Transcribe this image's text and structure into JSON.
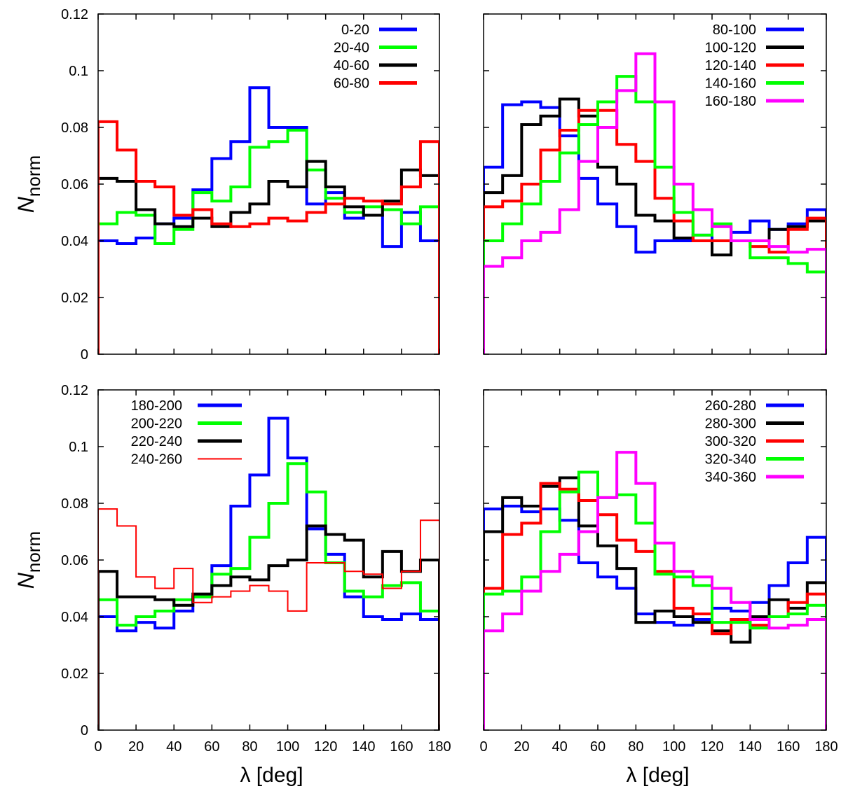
{
  "chart_data": [
    {
      "type": "line",
      "style": "step",
      "title": "",
      "xlabel": "",
      "ylabel": "N_norm",
      "ylabel_main": "N",
      "ylabel_sub": "norm",
      "xlim": [
        0,
        180
      ],
      "ylim": [
        0,
        0.12
      ],
      "xticks": [
        "0",
        "20",
        "40",
        "60",
        "80",
        "100",
        "120",
        "140",
        "160",
        "180"
      ],
      "yticks": [
        "0",
        "0.02",
        "0.04",
        "0.06",
        "0.08",
        "0.1",
        "0.12"
      ],
      "show_x_tick_labels": false,
      "show_y_tick_labels": true,
      "legend_position": "top-right",
      "series": [
        {
          "name": "0-20",
          "color": "#0000ff",
          "weight": "thick",
          "values": [
            0.04,
            0.039,
            0.041,
            0.046,
            0.048,
            0.058,
            0.069,
            0.075,
            0.094,
            0.08,
            0.08,
            0.053,
            0.057,
            0.048,
            0.049,
            0.038,
            0.05,
            0.04
          ]
        },
        {
          "name": "20-40",
          "color": "#00ff00",
          "weight": "thick",
          "values": [
            0.046,
            0.05,
            0.049,
            0.039,
            0.044,
            0.057,
            0.054,
            0.059,
            0.073,
            0.075,
            0.079,
            0.065,
            0.055,
            0.05,
            0.052,
            0.051,
            0.046,
            0.052
          ]
        },
        {
          "name": "40-60",
          "color": "#000000",
          "weight": "thick",
          "values": [
            0.062,
            0.061,
            0.051,
            0.046,
            0.045,
            0.048,
            0.045,
            0.05,
            0.053,
            0.061,
            0.059,
            0.068,
            0.059,
            0.052,
            0.049,
            0.054,
            0.065,
            0.063
          ]
        },
        {
          "name": "60-80",
          "color": "#ff0000",
          "weight": "thick",
          "values": [
            0.082,
            0.072,
            0.061,
            0.059,
            0.049,
            0.051,
            0.046,
            0.045,
            0.046,
            0.048,
            0.047,
            0.05,
            0.053,
            0.055,
            0.054,
            0.053,
            0.059,
            0.075
          ]
        }
      ]
    },
    {
      "type": "line",
      "style": "step",
      "title": "",
      "xlabel": "",
      "ylabel": "",
      "xlim": [
        0,
        180
      ],
      "ylim": [
        0,
        0.12
      ],
      "xticks": [
        "0",
        "20",
        "40",
        "60",
        "80",
        "100",
        "120",
        "140",
        "160",
        "180"
      ],
      "yticks": [
        "0",
        "0.02",
        "0.04",
        "0.06",
        "0.08",
        "0.1",
        "0.12"
      ],
      "show_x_tick_labels": false,
      "show_y_tick_labels": false,
      "legend_position": "top-right",
      "series": [
        {
          "name": "80-100",
          "color": "#0000ff",
          "weight": "thick",
          "values": [
            0.066,
            0.088,
            0.089,
            0.087,
            0.077,
            0.062,
            0.053,
            0.045,
            0.036,
            0.04,
            0.04,
            0.042,
            0.04,
            0.043,
            0.047,
            0.044,
            0.046,
            0.051
          ]
        },
        {
          "name": "100-120",
          "color": "#000000",
          "weight": "thick",
          "values": [
            0.057,
            0.063,
            0.081,
            0.084,
            0.09,
            0.084,
            0.066,
            0.06,
            0.049,
            0.047,
            0.041,
            0.04,
            0.035,
            0.04,
            0.04,
            0.044,
            0.045,
            0.047
          ]
        },
        {
          "name": "120-140",
          "color": "#ff0000",
          "weight": "thick",
          "values": [
            0.052,
            0.054,
            0.06,
            0.072,
            0.079,
            0.086,
            0.086,
            0.074,
            0.068,
            0.055,
            0.047,
            0.04,
            0.04,
            0.04,
            0.038,
            0.036,
            0.044,
            0.048
          ]
        },
        {
          "name": "140-160",
          "color": "#00ff00",
          "weight": "thick",
          "values": [
            0.04,
            0.046,
            0.053,
            0.061,
            0.071,
            0.081,
            0.089,
            0.098,
            0.089,
            0.066,
            0.05,
            0.042,
            0.046,
            0.04,
            0.034,
            0.034,
            0.032,
            0.029
          ]
        },
        {
          "name": "160-180",
          "color": "#ff00ff",
          "weight": "thick",
          "values": [
            0.031,
            0.034,
            0.04,
            0.043,
            0.051,
            0.068,
            0.08,
            0.093,
            0.106,
            0.089,
            0.06,
            0.051,
            0.045,
            0.04,
            0.04,
            0.038,
            0.036,
            0.037
          ]
        }
      ]
    },
    {
      "type": "line",
      "style": "step",
      "title": "",
      "xlabel": "λ [deg]",
      "ylabel": "N_norm",
      "ylabel_main": "N",
      "ylabel_sub": "norm",
      "xlim": [
        0,
        180
      ],
      "ylim": [
        0,
        0.12
      ],
      "xticks": [
        "0",
        "20",
        "40",
        "60",
        "80",
        "100",
        "120",
        "140",
        "160",
        "180"
      ],
      "yticks": [
        "0",
        "0.02",
        "0.04",
        "0.06",
        "0.08",
        "0.1",
        "0.12"
      ],
      "show_x_tick_labels": true,
      "show_y_tick_labels": true,
      "legend_position": "top-left",
      "series": [
        {
          "name": "180-200",
          "color": "#0000ff",
          "weight": "thick",
          "values": [
            0.04,
            0.035,
            0.038,
            0.036,
            0.042,
            0.047,
            0.058,
            0.079,
            0.09,
            0.11,
            0.096,
            0.071,
            0.062,
            0.047,
            0.04,
            0.039,
            0.041,
            0.039
          ]
        },
        {
          "name": "200-220",
          "color": "#00ff00",
          "weight": "thick",
          "values": [
            0.046,
            0.037,
            0.04,
            0.042,
            0.046,
            0.047,
            0.055,
            0.057,
            0.068,
            0.08,
            0.094,
            0.084,
            0.059,
            0.049,
            0.047,
            0.051,
            0.052,
            0.042
          ]
        },
        {
          "name": "220-240",
          "color": "#000000",
          "weight": "thick",
          "values": [
            0.056,
            0.047,
            0.047,
            0.046,
            0.044,
            0.048,
            0.051,
            0.054,
            0.053,
            0.058,
            0.06,
            0.072,
            0.069,
            0.067,
            0.054,
            0.063,
            0.056,
            0.06
          ]
        },
        {
          "name": "240-260",
          "color": "#ff0000",
          "weight": "thin",
          "values": [
            0.078,
            0.072,
            0.054,
            0.05,
            0.057,
            0.045,
            0.047,
            0.049,
            0.051,
            0.049,
            0.042,
            0.059,
            0.059,
            0.056,
            0.055,
            0.05,
            0.056,
            0.074
          ]
        }
      ]
    },
    {
      "type": "line",
      "style": "step",
      "title": "",
      "xlabel": "λ [deg]",
      "ylabel": "",
      "xlim": [
        0,
        180
      ],
      "ylim": [
        0,
        0.12
      ],
      "xticks": [
        "0",
        "20",
        "40",
        "60",
        "80",
        "100",
        "120",
        "140",
        "160",
        "180"
      ],
      "yticks": [
        "0",
        "0.02",
        "0.04",
        "0.06",
        "0.08",
        "0.1",
        "0.12"
      ],
      "show_x_tick_labels": true,
      "show_y_tick_labels": false,
      "legend_position": "top-right",
      "series": [
        {
          "name": "260-280",
          "color": "#0000ff",
          "weight": "thick",
          "values": [
            0.078,
            0.079,
            0.077,
            0.078,
            0.074,
            0.059,
            0.054,
            0.05,
            0.041,
            0.038,
            0.037,
            0.039,
            0.043,
            0.042,
            0.045,
            0.051,
            0.059,
            0.068
          ]
        },
        {
          "name": "280-300",
          "color": "#000000",
          "weight": "thick",
          "values": [
            0.07,
            0.082,
            0.079,
            0.086,
            0.089,
            0.072,
            0.065,
            0.057,
            0.038,
            0.042,
            0.04,
            0.038,
            0.035,
            0.031,
            0.04,
            0.046,
            0.043,
            0.052
          ]
        },
        {
          "name": "300-320",
          "color": "#ff0000",
          "weight": "thick",
          "values": [
            0.05,
            0.069,
            0.073,
            0.087,
            0.085,
            0.081,
            0.076,
            0.067,
            0.063,
            0.056,
            0.043,
            0.041,
            0.034,
            0.039,
            0.037,
            0.04,
            0.045,
            0.048
          ]
        },
        {
          "name": "320-340",
          "color": "#00ff00",
          "weight": "thick",
          "values": [
            0.048,
            0.049,
            0.054,
            0.07,
            0.084,
            0.091,
            0.082,
            0.083,
            0.073,
            0.055,
            0.054,
            0.051,
            0.038,
            0.038,
            0.036,
            0.04,
            0.041,
            0.044
          ]
        },
        {
          "name": "340-360",
          "color": "#ff00ff",
          "weight": "thick",
          "values": [
            0.035,
            0.041,
            0.049,
            0.056,
            0.062,
            0.07,
            0.082,
            0.098,
            0.087,
            0.066,
            0.056,
            0.054,
            0.05,
            0.045,
            0.039,
            0.036,
            0.037,
            0.039
          ]
        }
      ]
    }
  ]
}
